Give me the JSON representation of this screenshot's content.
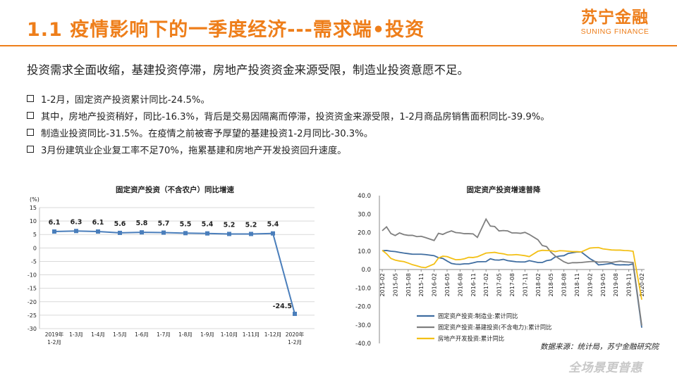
{
  "header": {
    "title": "1.1 疫情影响下的一季度经济---需求端•投资",
    "logo_cn": "苏宁金融",
    "logo_en": "SUNING FINANCE",
    "accent_color": "#ee7e1a"
  },
  "summary": "投资需求全面收缩，基建投资停滞，房地产投资资金来源受限，制造业投资意愿不足。",
  "bullets": [
    "1-2月，固定资产投资累计同比-24.5%。",
    "其中，房地产投资稍好，同比-16.3%，背后是交易因隔离而停滞，投资资金来源受限，1-2月商品房销售面积同比-39.9%。",
    "制造业投资同比-31.5%。在疫情之前被寄予厚望的基建投资1-2月同比-30.3%。",
    "3月份建筑业企业复工率不足70%，拖累基建和房地产开发投资回升速度。"
  ],
  "source_note": "数据来源：统计局，苏宁金融研究院",
  "slogan": "全场景更普惠",
  "chart_data": [
    {
      "type": "line",
      "title": "固定资产投资（不含农户）同比增速",
      "ylabel": "(%)",
      "ylim": [
        -30,
        15
      ],
      "yticks": [
        15,
        10,
        5,
        0,
        -5,
        -10,
        -15,
        -20,
        -25,
        -30
      ],
      "grid": true,
      "categories": [
        "2019年\n1-2月",
        "1-3月",
        "1-4月",
        "1-5月",
        "1-6月",
        "1-7月",
        "1-8月",
        "1-9月",
        "1-10月",
        "1-11月",
        "1-12月",
        "2020年\n1-2月"
      ],
      "values": [
        6.1,
        6.3,
        6.1,
        5.6,
        5.8,
        5.7,
        5.5,
        5.4,
        5.2,
        5.2,
        5.4,
        -24.5
      ],
      "data_labels": [
        "6.1",
        "6.3",
        "6.1",
        "5.6",
        "5.8",
        "5.7",
        "5.5",
        "5.4",
        "5.2",
        "5.2",
        "5.4",
        "-24.5"
      ],
      "color": "#4a7ebb"
    },
    {
      "type": "line",
      "title": "固定资产投资增速普降",
      "ylim": [
        -40,
        40
      ],
      "yticks": [
        "40.0",
        "30.0",
        "20.0",
        "10.0",
        "0.0",
        "-10.0",
        "-20.0",
        "-30.0",
        "-40.0"
      ],
      "grid": false,
      "legend_position": "bottom-left",
      "x_tick_labels": [
        "2015-02",
        "2015-05",
        "2015-08",
        "2015-11",
        "2016-02",
        "2016-05",
        "2016-08",
        "2016-11",
        "2017-02",
        "2017-05",
        "2017-08",
        "2017-11",
        "2018-02",
        "2018-05",
        "2018-08",
        "2018-11",
        "2019-02",
        "2019-05",
        "2019-08",
        "2019-11",
        "2020-02"
      ],
      "x": [
        "2015-02",
        "2015-03",
        "2015-04",
        "2015-05",
        "2015-06",
        "2015-07",
        "2015-08",
        "2015-09",
        "2015-10",
        "2015-11",
        "2015-12",
        "2016-02",
        "2016-03",
        "2016-04",
        "2016-05",
        "2016-06",
        "2016-07",
        "2016-08",
        "2016-09",
        "2016-10",
        "2016-11",
        "2016-12",
        "2017-02",
        "2017-03",
        "2017-04",
        "2017-05",
        "2017-06",
        "2017-07",
        "2017-08",
        "2017-09",
        "2017-10",
        "2017-11",
        "2017-12",
        "2018-02",
        "2018-03",
        "2018-04",
        "2018-05",
        "2018-06",
        "2018-07",
        "2018-08",
        "2018-09",
        "2018-10",
        "2018-11",
        "2018-12",
        "2019-02",
        "2019-03",
        "2019-04",
        "2019-05",
        "2019-06",
        "2019-07",
        "2019-08",
        "2019-09",
        "2019-10",
        "2019-11",
        "2019-12",
        "2020-02"
      ],
      "series": [
        {
          "name": "固定资产投资:制造业:累计同比",
          "color": "#3f6da0",
          "values": [
            10.2,
            10.3,
            9.9,
            9.7,
            9.3,
            8.9,
            8.6,
            8.3,
            8.3,
            8.3,
            8.1,
            7.5,
            6.4,
            6.0,
            4.6,
            3.3,
            2.9,
            2.8,
            3.1,
            3.1,
            3.6,
            4.2,
            4.3,
            5.8,
            5.2,
            5.1,
            5.5,
            4.8,
            4.5,
            4.2,
            4.1,
            4.1,
            4.8,
            3.8,
            3.8,
            4.8,
            5.2,
            6.8,
            7.3,
            7.5,
            8.7,
            9.1,
            9.5,
            9.5,
            5.9,
            4.6,
            2.5,
            2.7,
            3.0,
            3.3,
            2.6,
            2.5,
            2.6,
            2.5,
            3.1,
            -31.5
          ]
        },
        {
          "name": "固定资产投资:基建投资(不含电力):累计同比",
          "color": "#7f7f7f",
          "values": [
            21.0,
            23.1,
            19.5,
            18.4,
            19.8,
            18.9,
            18.5,
            18.5,
            17.8,
            18.0,
            17.3,
            15.7,
            19.6,
            19.0,
            20.1,
            20.9,
            20.0,
            19.8,
            19.4,
            19.4,
            19.3,
            17.4,
            27.3,
            23.5,
            23.3,
            20.9,
            21.1,
            20.9,
            19.8,
            19.8,
            19.6,
            20.1,
            19.0,
            16.1,
            13.0,
            12.4,
            9.4,
            7.3,
            5.7,
            4.2,
            3.3,
            3.7,
            3.7,
            3.8,
            4.3,
            4.4,
            4.0,
            4.1,
            4.1,
            3.8,
            4.2,
            4.5,
            4.2,
            4.0,
            3.8,
            -30.3
          ]
        },
        {
          "name": "房地产开发投资:累计同比",
          "color": "#f3c016",
          "values": [
            10.4,
            8.5,
            6.0,
            5.1,
            4.6,
            4.3,
            3.5,
            2.6,
            2.0,
            1.3,
            1.0,
            3.0,
            6.2,
            7.2,
            7.0,
            6.1,
            5.3,
            5.4,
            5.8,
            6.6,
            6.5,
            6.9,
            8.9,
            9.1,
            9.3,
            8.8,
            8.5,
            7.9,
            7.9,
            8.1,
            7.8,
            7.5,
            7.0,
            9.9,
            10.4,
            10.3,
            10.2,
            9.7,
            10.2,
            10.1,
            9.9,
            9.7,
            9.7,
            9.5,
            11.6,
            11.8,
            11.9,
            11.2,
            10.9,
            10.6,
            10.5,
            10.5,
            10.3,
            10.2,
            9.9,
            -16.3
          ]
        }
      ]
    }
  ]
}
